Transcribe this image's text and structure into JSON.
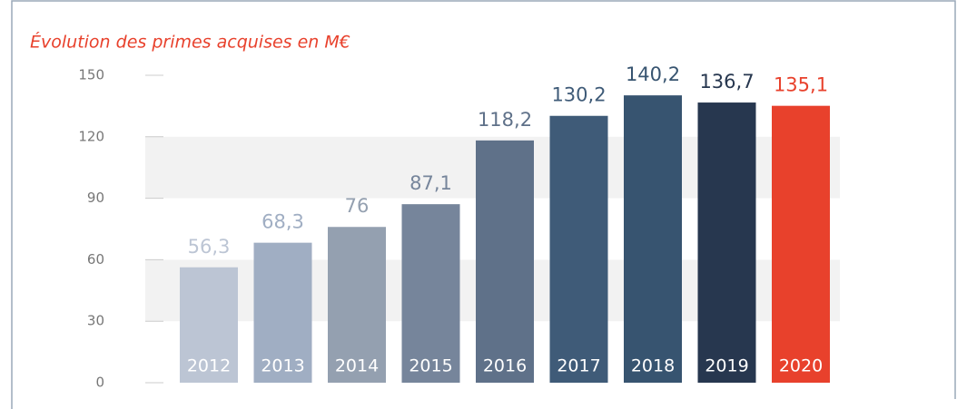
{
  "chart_data": {
    "type": "bar",
    "title": "Évolution des primes acquises en M€",
    "categories": [
      "2012",
      "2013",
      "2014",
      "2015",
      "2016",
      "2017",
      "2018",
      "2019",
      "2020"
    ],
    "values": [
      56.3,
      68.3,
      76,
      87.1,
      118.2,
      130.2,
      140.2,
      136.7,
      135.1
    ],
    "value_labels": [
      "56,3",
      "68,3",
      "76",
      "87,1",
      "118,2",
      "130,2",
      "140,2",
      "136,7",
      "135,1"
    ],
    "colors": [
      "#bcc5d4",
      "#a0aec3",
      "#94a0b0",
      "#76859b",
      "#5f7189",
      "#3f5b78",
      "#375470",
      "#27374f",
      "#e8412c"
    ],
    "ylim": [
      0,
      150
    ],
    "yticks": [
      0,
      30,
      60,
      90,
      120,
      150
    ],
    "grid": true
  }
}
